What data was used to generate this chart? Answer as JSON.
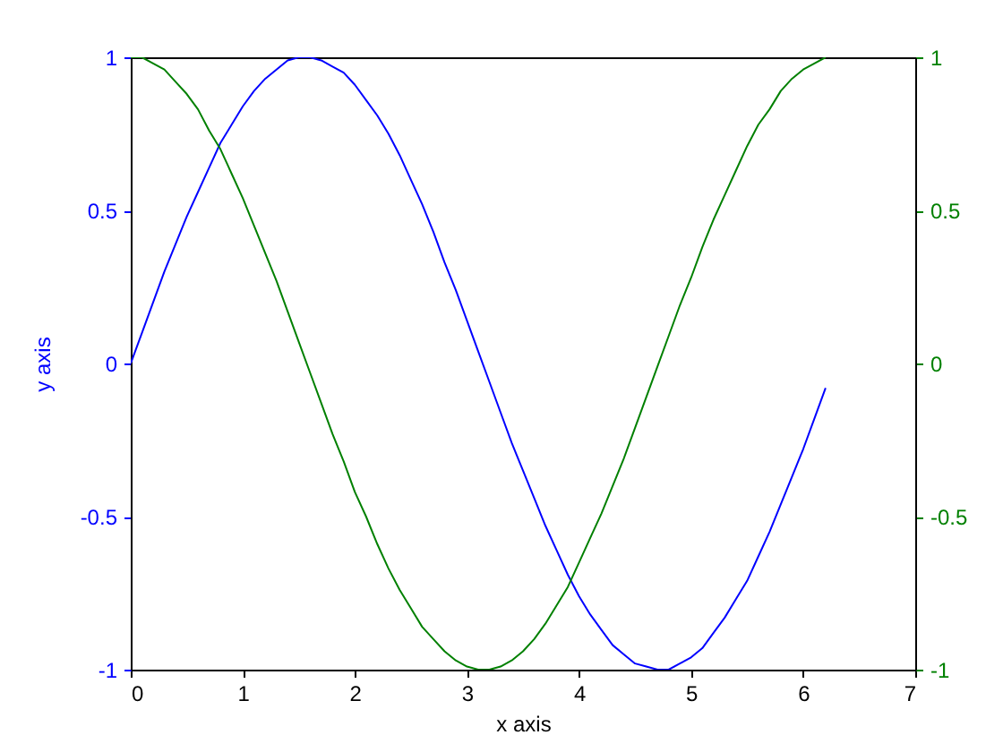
{
  "chart_data": {
    "type": "line",
    "xlabel": "x axis",
    "ylabel": "y axis",
    "x": [
      0,
      0.1,
      0.2,
      0.3,
      0.4,
      0.5,
      0.6,
      0.7,
      0.8,
      0.9,
      1.0,
      1.1,
      1.2,
      1.3,
      1.4,
      1.5,
      1.6,
      1.7,
      1.8,
      1.9,
      2.0,
      2.1,
      2.2,
      2.3,
      2.4,
      2.5,
      2.6,
      2.7,
      2.8,
      2.9,
      3.0,
      3.1,
      3.2,
      3.3,
      3.4,
      3.5,
      3.6,
      3.7,
      3.8,
      3.9,
      4.0,
      4.1,
      4.2,
      4.3,
      4.4,
      4.5,
      4.6,
      4.7,
      4.8,
      4.9,
      5.0,
      5.1,
      5.2,
      5.3,
      5.4,
      5.5,
      5.6,
      5.7,
      5.8,
      5.9,
      6.0,
      6.1,
      6.2
    ],
    "series": [
      {
        "color": "#0000ff",
        "values": [
          0.0,
          0.1,
          0.2,
          0.3,
          0.39,
          0.48,
          0.56,
          0.64,
          0.72,
          0.78,
          0.84,
          0.89,
          0.93,
          0.96,
          0.99,
          1.0,
          1.0,
          0.99,
          0.97,
          0.95,
          0.91,
          0.86,
          0.81,
          0.75,
          0.68,
          0.6,
          0.52,
          0.43,
          0.33,
          0.24,
          0.14,
          0.04,
          -0.06,
          -0.16,
          -0.26,
          -0.35,
          -0.44,
          -0.53,
          -0.61,
          -0.69,
          -0.76,
          -0.82,
          -0.87,
          -0.92,
          -0.95,
          -0.98,
          -0.99,
          -1.0,
          -1.0,
          -0.98,
          -0.96,
          -0.93,
          -0.88,
          -0.83,
          -0.77,
          -0.71,
          -0.63,
          -0.55,
          -0.46,
          -0.37,
          -0.28,
          -0.18,
          -0.08
        ]
      },
      {
        "color": "#008000",
        "axis": "y2",
        "values": [
          1.0,
          1.0,
          0.98,
          0.96,
          0.92,
          0.88,
          0.83,
          0.76,
          0.7,
          0.62,
          0.54,
          0.45,
          0.36,
          0.27,
          0.17,
          0.07,
          -0.03,
          -0.13,
          -0.23,
          -0.32,
          -0.42,
          -0.5,
          -0.59,
          -0.67,
          -0.74,
          -0.8,
          -0.86,
          -0.9,
          -0.94,
          -0.97,
          -0.99,
          -1.0,
          -1.0,
          -0.99,
          -0.97,
          -0.94,
          -0.9,
          -0.85,
          -0.79,
          -0.73,
          -0.65,
          -0.57,
          -0.49,
          -0.4,
          -0.31,
          -0.21,
          -0.11,
          -0.01,
          0.09,
          0.19,
          0.28,
          0.38,
          0.47,
          0.55,
          0.63,
          0.71,
          0.78,
          0.83,
          0.89,
          0.93,
          0.96,
          0.98,
          1.0
        ]
      }
    ],
    "xlim": [
      0,
      7
    ],
    "xticks": [
      0,
      1,
      2,
      3,
      4,
      5,
      6,
      7
    ],
    "ylim": [
      -1,
      1
    ],
    "yticks": [
      -1,
      -0.5,
      0,
      0.5,
      1
    ],
    "y2lim": [
      -1,
      1
    ],
    "y2ticks": [
      -1,
      -0.5,
      0,
      0.5,
      1
    ],
    "grid": false
  }
}
